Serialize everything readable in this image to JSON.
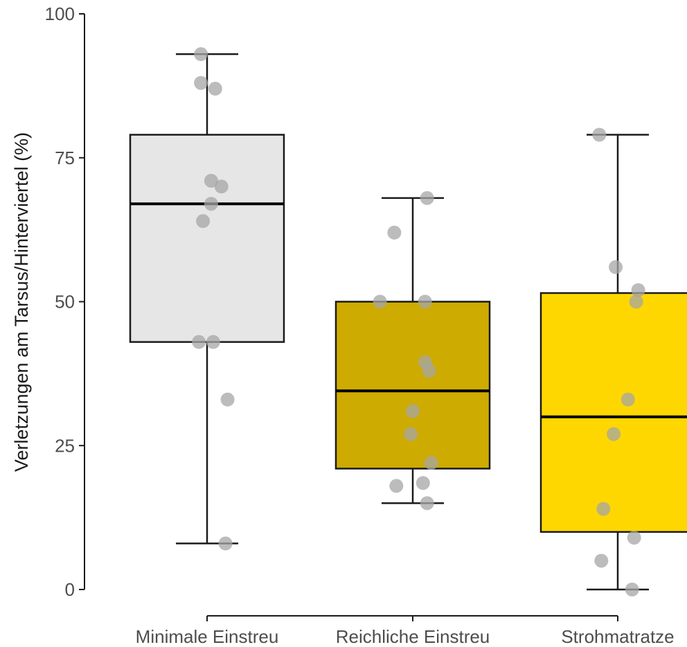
{
  "chart_data": {
    "type": "boxplot",
    "title": "",
    "xlabel": "",
    "ylabel": "Verletzungen am Tarsus/Hinterviertel (%)",
    "ylim": [
      0,
      100
    ],
    "yticks": [
      0,
      25,
      50,
      75,
      100
    ],
    "grid": false,
    "legend": "none",
    "categories": [
      "Minimale Einstreu",
      "Reichliche Einstreu",
      "Strohmatratze"
    ],
    "point_color": "#a6a6a6",
    "line_color": "#1a1a1a",
    "boxes": [
      {
        "category": "Minimale Einstreu",
        "fill": "#e6e6e6",
        "whisker_low": 8,
        "q1": 43,
        "median": 67,
        "q3": 79,
        "whisker_high": 93,
        "points": [
          {
            "x": -0.03,
            "y": 93
          },
          {
            "x": -0.03,
            "y": 88
          },
          {
            "x": 0.04,
            "y": 87
          },
          {
            "x": 0.02,
            "y": 71
          },
          {
            "x": 0.07,
            "y": 70
          },
          {
            "x": 0.02,
            "y": 67
          },
          {
            "x": -0.02,
            "y": 64
          },
          {
            "x": -0.04,
            "y": 43
          },
          {
            "x": 0.03,
            "y": 43
          },
          {
            "x": 0.1,
            "y": 33
          },
          {
            "x": 0.09,
            "y": 8
          }
        ]
      },
      {
        "category": "Reichliche Einstreu",
        "fill": "#cdab00",
        "whisker_low": 15,
        "q1": 21,
        "median": 34.5,
        "q3": 50,
        "whisker_high": 68,
        "points": [
          {
            "x": 0.07,
            "y": 68
          },
          {
            "x": -0.09,
            "y": 62
          },
          {
            "x": -0.16,
            "y": 50
          },
          {
            "x": 0.06,
            "y": 50
          },
          {
            "x": 0.06,
            "y": 39.5
          },
          {
            "x": 0.08,
            "y": 38
          },
          {
            "x": 0.0,
            "y": 31
          },
          {
            "x": -0.01,
            "y": 27
          },
          {
            "x": 0.09,
            "y": 22
          },
          {
            "x": -0.08,
            "y": 18
          },
          {
            "x": 0.05,
            "y": 18.5
          },
          {
            "x": 0.07,
            "y": 15
          }
        ]
      },
      {
        "category": "Strohmatratze",
        "fill": "#ffd700",
        "whisker_low": 0,
        "q1": 10,
        "median": 30,
        "q3": 51.5,
        "whisker_high": 79,
        "points": [
          {
            "x": -0.09,
            "y": 79
          },
          {
            "x": -0.01,
            "y": 56
          },
          {
            "x": 0.1,
            "y": 52
          },
          {
            "x": 0.09,
            "y": 50
          },
          {
            "x": 0.05,
            "y": 33
          },
          {
            "x": -0.02,
            "y": 27
          },
          {
            "x": -0.07,
            "y": 14
          },
          {
            "x": 0.08,
            "y": 9
          },
          {
            "x": -0.08,
            "y": 5
          },
          {
            "x": 0.07,
            "y": 0
          }
        ]
      }
    ]
  }
}
